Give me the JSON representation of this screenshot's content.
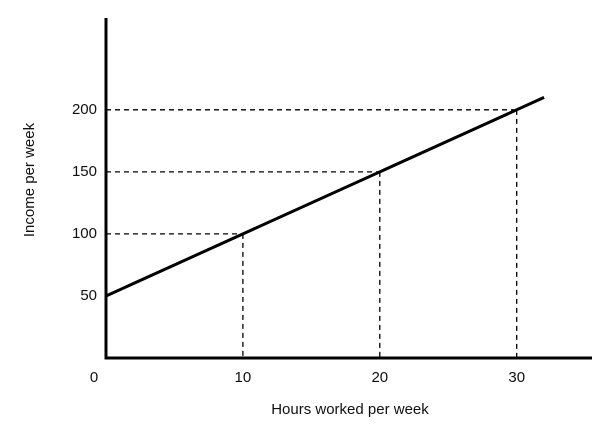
{
  "chart_data": {
    "type": "line",
    "x_label": "Hours worked per week",
    "y_label": "Income per week",
    "series": [
      {
        "color": "#000000",
        "x": [
          0,
          32
        ],
        "values": [
          50,
          210
        ]
      }
    ],
    "guides": {
      "x": [
        10,
        20,
        30
      ],
      "y": [
        100,
        150,
        200
      ]
    },
    "xlim": [
      0,
      35.5
    ],
    "ylim": [
      0,
      274
    ],
    "xticks": [
      0,
      10,
      20,
      30
    ],
    "yticks": [
      50,
      100,
      150,
      200
    ]
  }
}
